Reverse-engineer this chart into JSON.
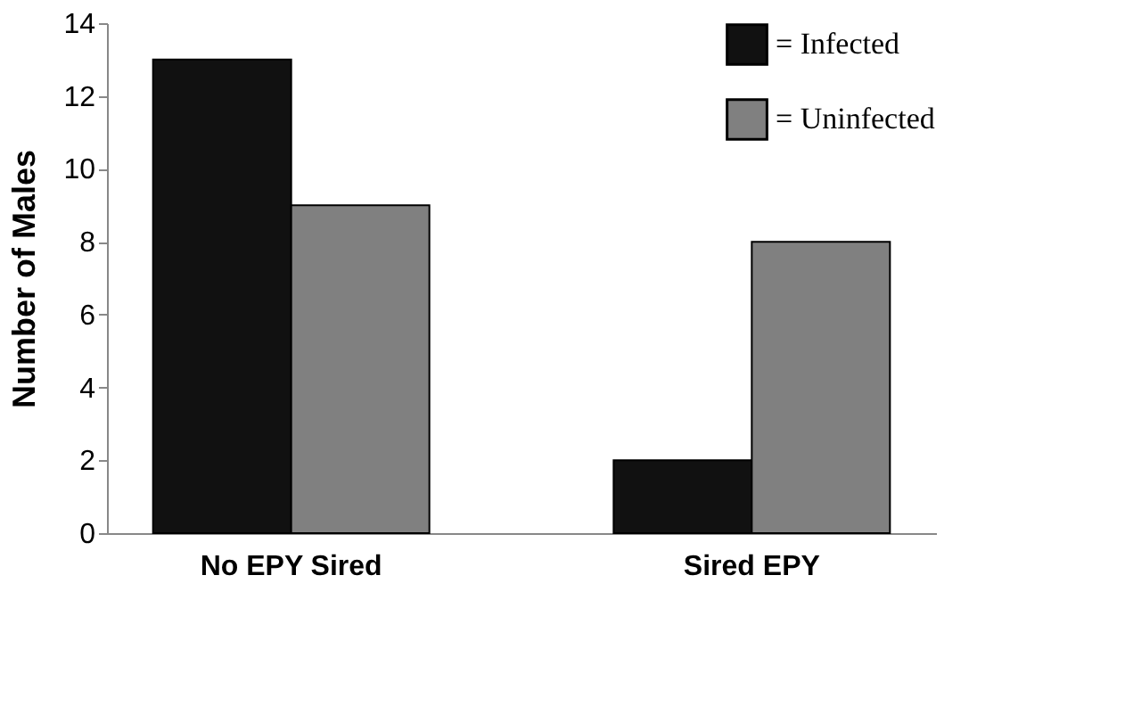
{
  "chart_data": {
    "type": "bar",
    "ylabel": "Number of Males",
    "categories": [
      "No EPY Sired",
      "Sired EPY"
    ],
    "series": [
      {
        "name": "= Infected",
        "color": "#111111",
        "values": [
          13,
          2
        ]
      },
      {
        "name": "= Uninfected",
        "color": "#808080",
        "values": [
          9,
          8
        ]
      }
    ],
    "ylim": [
      0,
      14
    ],
    "yticks": [
      0,
      2,
      4,
      6,
      8,
      10,
      12,
      14
    ],
    "grid": false,
    "legend": "top right"
  }
}
